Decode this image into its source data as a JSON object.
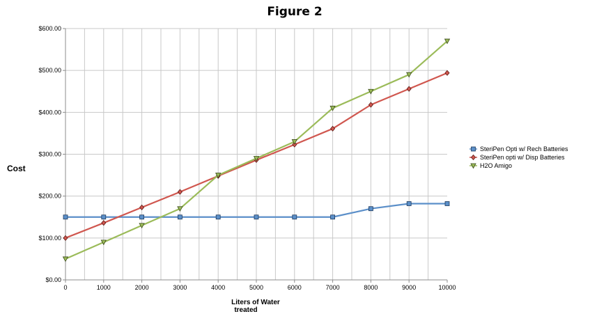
{
  "chart_data": {
    "type": "line",
    "title": "Figure 2",
    "xlabel": [
      "Liters of Water",
      "treated"
    ],
    "ylabel": "Cost",
    "x": [
      0,
      1000,
      2000,
      3000,
      4000,
      5000,
      6000,
      7000,
      8000,
      9000,
      10000
    ],
    "xlim": [
      0,
      10000
    ],
    "ylim": [
      0,
      600
    ],
    "x_ticks": [
      "0",
      "1000",
      "2000",
      "3000",
      "4000",
      "5000",
      "6000",
      "7000",
      "8000",
      "9000",
      "10000"
    ],
    "y_ticks": [
      {
        "value": 0,
        "label": "$0.00"
      },
      {
        "value": 100,
        "label": "$100.00"
      },
      {
        "value": 200,
        "label": "$200.00"
      },
      {
        "value": 300,
        "label": "$300.00"
      },
      {
        "value": 400,
        "label": "$400.00"
      },
      {
        "value": 500,
        "label": "$500.00"
      },
      {
        "value": 600,
        "label": "$600.00"
      }
    ],
    "grid": true,
    "legend_position": "right",
    "series": [
      {
        "name": "SteriPen Opti w/ Rech Batteries",
        "color": "#5b8fc9",
        "marker": "square",
        "values": [
          150,
          150,
          150,
          150,
          150,
          150,
          150,
          150,
          170,
          182,
          182
        ]
      },
      {
        "name": "SteriPen opti w/ Disp Batteries",
        "color": "#d0574f",
        "marker": "diamond",
        "values": [
          100,
          136,
          173,
          210,
          248,
          286,
          323,
          361,
          418,
          456,
          494
        ]
      },
      {
        "name": "H2O Amigo",
        "color": "#9bbb59",
        "marker": "triangle",
        "values": [
          50,
          90,
          130,
          170,
          250,
          290,
          330,
          410,
          450,
          490,
          570
        ]
      }
    ]
  }
}
